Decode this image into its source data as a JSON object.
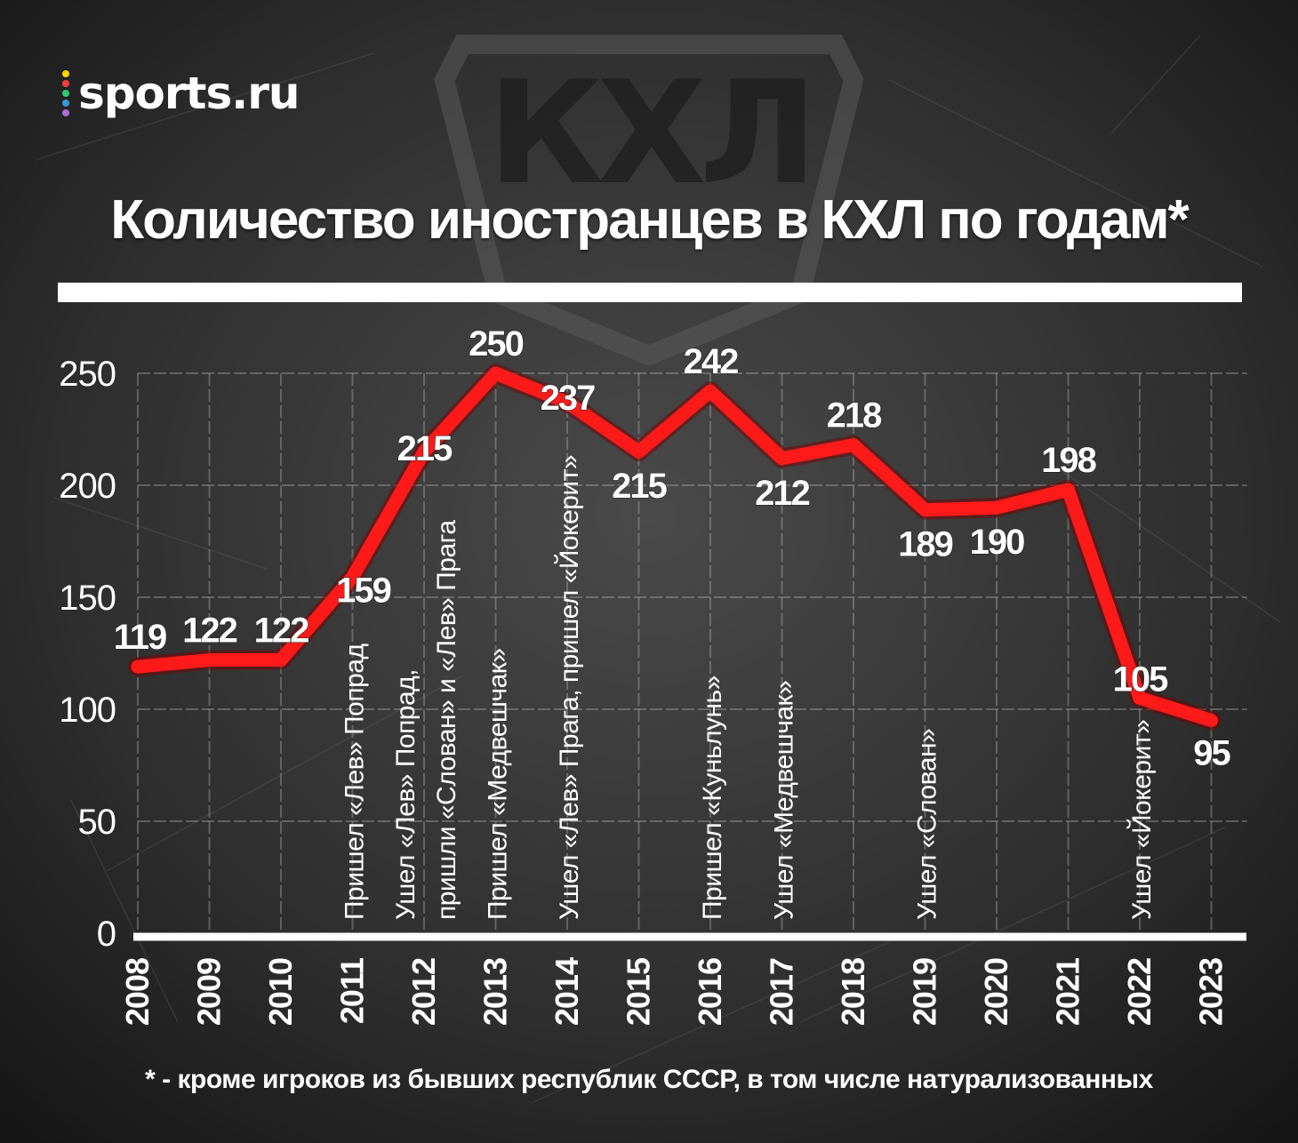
{
  "brand": {
    "name": "sports.ru",
    "dot_colors": [
      "#ffd400",
      "#ff3b3b",
      "#2ecc71",
      "#3498db",
      "#b06bd8"
    ]
  },
  "watermark": {
    "text": "КХЛ"
  },
  "title": "Количество иностранцев в КХЛ по годам*",
  "footnote": "* - кроме игроков из бывших республик СССР, в том числе натурализованных",
  "chart_data": {
    "type": "line",
    "title": "Количество иностранцев в КХЛ по годам*",
    "x": [
      "2008",
      "2009",
      "2010",
      "2011",
      "2012",
      "2013",
      "2014",
      "2015",
      "2016",
      "2017",
      "2018",
      "2019",
      "2020",
      "2021",
      "2022",
      "2023"
    ],
    "series": [
      {
        "values": [
          119,
          122,
          122,
          159,
          215,
          250,
          237,
          215,
          242,
          212,
          218,
          189,
          190,
          198,
          105,
          95
        ]
      }
    ],
    "ylim": [
      0,
      250
    ],
    "yticks": [
      "0",
      "50",
      "100",
      "150",
      "200",
      "250"
    ],
    "grid": true,
    "line_color": "#ff1a1a",
    "annotations": [
      {
        "year": "2011",
        "lines": [
          "Пришел «Лев» Попрад"
        ]
      },
      {
        "year": "2012",
        "lines": [
          "Ушел «Лев» Попрад,",
          "пришли «Слован» и «Лев» Прага"
        ]
      },
      {
        "year": "2013",
        "lines": [
          "Пришел «Медвешчак»"
        ]
      },
      {
        "year": "2014",
        "lines": [
          "Ушел «Лев» Прага, пришел «Йокерит»"
        ]
      },
      {
        "year": "2016",
        "lines": [
          "Пришел «Куньлунь»"
        ]
      },
      {
        "year": "2017",
        "lines": [
          "Ушел «Медвешчак»"
        ]
      },
      {
        "year": "2019",
        "lines": [
          "Ушел «Слован»"
        ]
      },
      {
        "year": "2022",
        "lines": [
          "Ушел «Йокерит»"
        ]
      }
    ]
  }
}
